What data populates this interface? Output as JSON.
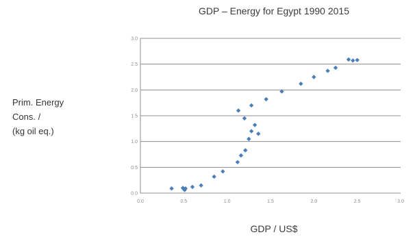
{
  "chart_data": {
    "type": "scatter",
    "title": "GDP – Energy for Egypt 1990  2015",
    "xlabel": "GDP / US$",
    "ylabel_lines": [
      "Prim. Energy",
      "Cons. /",
      "(kg oil eq.)"
    ],
    "ylabel": "Prim. Energy Cons. / (kg oil eq.)",
    "xlim": [
      0,
      3
    ],
    "ylim": [
      0,
      3
    ],
    "x_ticks": [
      0,
      0.5,
      1,
      1.5,
      2,
      2.5,
      3
    ],
    "y_ticks": [
      0,
      0.5,
      1,
      1.5,
      2,
      2.5,
      3
    ],
    "grid": "horizontal",
    "marker_color": "#4a7ebb",
    "gridline_color": "#8c8c8c",
    "points": [
      {
        "x": 0.36,
        "y": 0.09
      },
      {
        "x": 0.49,
        "y": 0.1
      },
      {
        "x": 0.51,
        "y": 0.06
      },
      {
        "x": 0.52,
        "y": 0.09
      },
      {
        "x": 0.6,
        "y": 0.12
      },
      {
        "x": 0.7,
        "y": 0.15
      },
      {
        "x": 0.85,
        "y": 0.32
      },
      {
        "x": 0.95,
        "y": 0.42
      },
      {
        "x": 1.12,
        "y": 0.6
      },
      {
        "x": 1.16,
        "y": 0.73
      },
      {
        "x": 1.21,
        "y": 0.83
      },
      {
        "x": 1.25,
        "y": 1.05
      },
      {
        "x": 1.28,
        "y": 1.2
      },
      {
        "x": 1.32,
        "y": 1.32
      },
      {
        "x": 1.36,
        "y": 1.15
      },
      {
        "x": 1.2,
        "y": 1.45
      },
      {
        "x": 1.13,
        "y": 1.6
      },
      {
        "x": 1.28,
        "y": 1.7
      },
      {
        "x": 1.45,
        "y": 1.82
      },
      {
        "x": 1.63,
        "y": 1.97
      },
      {
        "x": 1.85,
        "y": 2.12
      },
      {
        "x": 2.0,
        "y": 2.25
      },
      {
        "x": 2.16,
        "y": 2.37
      },
      {
        "x": 2.25,
        "y": 2.43
      },
      {
        "x": 2.4,
        "y": 2.59
      },
      {
        "x": 2.45,
        "y": 2.57
      },
      {
        "x": 2.5,
        "y": 2.58
      }
    ]
  }
}
